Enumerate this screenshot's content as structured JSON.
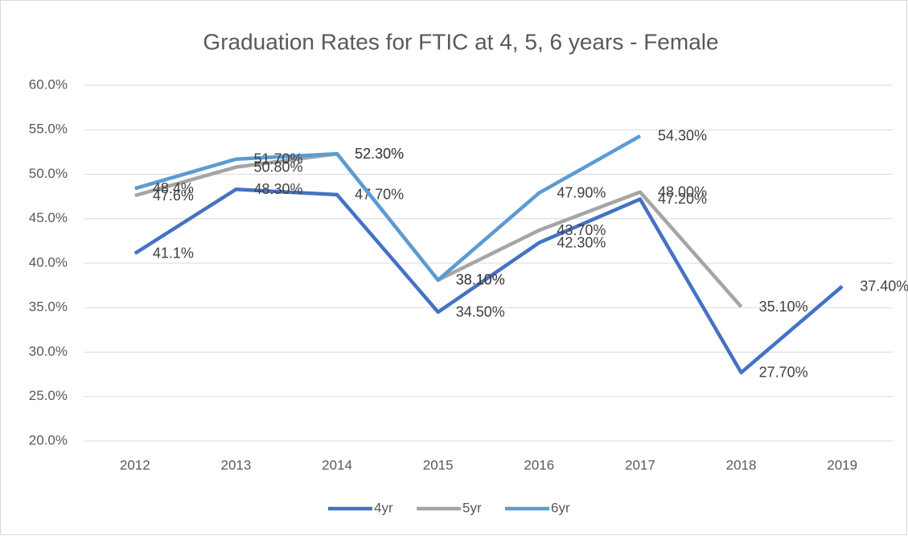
{
  "chart_data": {
    "type": "line",
    "title": "Graduation Rates for FTIC at 4, 5, 6 years - Female",
    "categories": [
      "2012",
      "2013",
      "2014",
      "2015",
      "2016",
      "2017",
      "2018",
      "2019"
    ],
    "series": [
      {
        "name": "4yr",
        "color": "#4472c4",
        "values": [
          41.1,
          48.3,
          47.7,
          34.5,
          42.3,
          47.2,
          27.7,
          37.4
        ],
        "value_labels": [
          "41.1%",
          "48.30%",
          "47.70%",
          "34.50%",
          "42.30%",
          "47.20%",
          "27.70%",
          "37.40%"
        ]
      },
      {
        "name": "5yr",
        "color": "#a5a5a5",
        "values": [
          47.6,
          50.8,
          52.3,
          38.1,
          43.7,
          48.0,
          35.1,
          null
        ],
        "value_labels": [
          "47.6%",
          "50.80%",
          "52.30%",
          "38.10%",
          "43.70%",
          "48.00%",
          "35.10%",
          null
        ]
      },
      {
        "name": "6yr",
        "color": "#5b9bd5",
        "values": [
          48.4,
          51.7,
          52.3,
          38.1,
          47.9,
          54.3,
          null,
          null
        ],
        "value_labels": [
          "48.4%",
          "51.70%",
          "52.30%",
          "38.10%",
          "47.90%",
          "54.30%",
          null,
          null
        ]
      }
    ],
    "ylim": [
      20,
      60
    ],
    "yticks": [
      {
        "value": 20,
        "label": "20.0%"
      },
      {
        "value": 25,
        "label": "25.0%"
      },
      {
        "value": 30,
        "label": "30.0%"
      },
      {
        "value": 35,
        "label": "35.0%"
      },
      {
        "value": 40,
        "label": "40.0%"
      },
      {
        "value": 45,
        "label": "45.0%"
      },
      {
        "value": 50,
        "label": "50.0%"
      },
      {
        "value": 55,
        "label": "55.0%"
      },
      {
        "value": 60,
        "label": "60.0%"
      }
    ],
    "grid": true,
    "legend": "bottom"
  }
}
